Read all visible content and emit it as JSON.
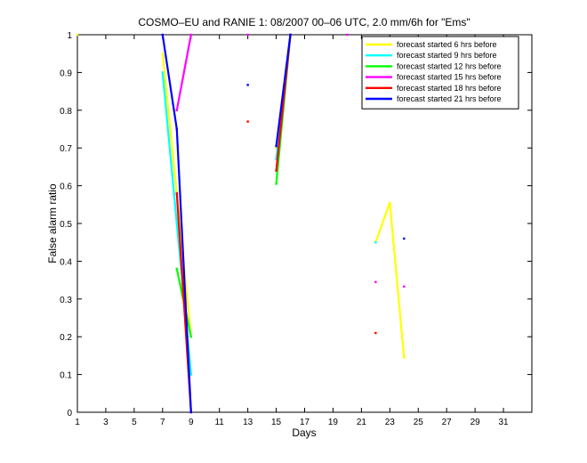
{
  "chart_data": {
    "type": "line",
    "title": "COSMO–EU and RANIE 1: 08/2007 00–06 UTC, 2.0 mm/6h for \"Ems\"",
    "xlabel": "Days",
    "ylabel": "False alarm ratio",
    "xlim": [
      1,
      33
    ],
    "ylim": [
      0,
      1
    ],
    "xticks": [
      "1",
      "3",
      "5",
      "7",
      "9",
      "11",
      "13",
      "15",
      "17",
      "19",
      "21",
      "23",
      "25",
      "27",
      "29",
      "31"
    ],
    "xtick_values": [
      1,
      3,
      5,
      7,
      9,
      11,
      13,
      15,
      17,
      19,
      21,
      23,
      25,
      27,
      29,
      31
    ],
    "yticks": [
      "0",
      "0.1",
      "0.2",
      "0.3",
      "0.4",
      "0.5",
      "0.6",
      "0.7",
      "0.8",
      "0.9",
      "1"
    ],
    "ytick_values": [
      0,
      0.1,
      0.2,
      0.3,
      0.4,
      0.5,
      0.6,
      0.7,
      0.8,
      0.9,
      1
    ],
    "grid": false,
    "legend_position": "top-right",
    "series": [
      {
        "name": "forecast started  6 hrs before",
        "color": "#ffff00",
        "points": [
          [
            1,
            1
          ],
          [
            7,
            0.95
          ],
          [
            8,
            0.58
          ],
          [
            9,
            0.2
          ],
          [
            15,
            0.7
          ],
          [
            16,
            1
          ],
          [
            21,
            null
          ],
          [
            22,
            0.45
          ],
          [
            23,
            0.555
          ],
          [
            24,
            0.145
          ]
        ]
      },
      {
        "name": "forecast started  9 hrs before",
        "color": "#00ffff",
        "points": [
          [
            7,
            0.9
          ],
          [
            8,
            0.5
          ],
          [
            9,
            0.1
          ],
          [
            15,
            0.67
          ],
          [
            16,
            1
          ],
          [
            22,
            0.45
          ]
        ]
      },
      {
        "name": "forecast started 12 hrs before",
        "color": "#00ff00",
        "points": [
          [
            8,
            0.38
          ],
          [
            9,
            0.2
          ],
          [
            15,
            0.605
          ],
          [
            16,
            1
          ]
        ]
      },
      {
        "name": "forecast started 15 hrs before",
        "color": "#ff00ff",
        "points": [
          [
            8,
            0.8
          ],
          [
            9,
            1
          ],
          [
            13,
            1
          ],
          [
            20,
            1
          ],
          [
            22,
            0.345
          ],
          [
            24,
            0.333
          ]
        ]
      },
      {
        "name": "forecast started 18 hrs before",
        "color": "#ff0000",
        "points": [
          [
            8,
            0.58
          ],
          [
            9,
            0
          ],
          [
            13,
            0.77
          ],
          [
            15,
            0.64
          ],
          [
            16,
            1
          ],
          [
            22,
            0.21
          ]
        ]
      },
      {
        "name": "forecast started 21 hrs before",
        "color": "#0000ff",
        "points": [
          [
            7,
            1
          ],
          [
            8,
            0.75
          ],
          [
            9,
            0
          ],
          [
            13,
            0.867
          ],
          [
            15,
            0.705
          ],
          [
            16,
            1
          ],
          [
            24,
            0.46
          ]
        ]
      }
    ]
  }
}
